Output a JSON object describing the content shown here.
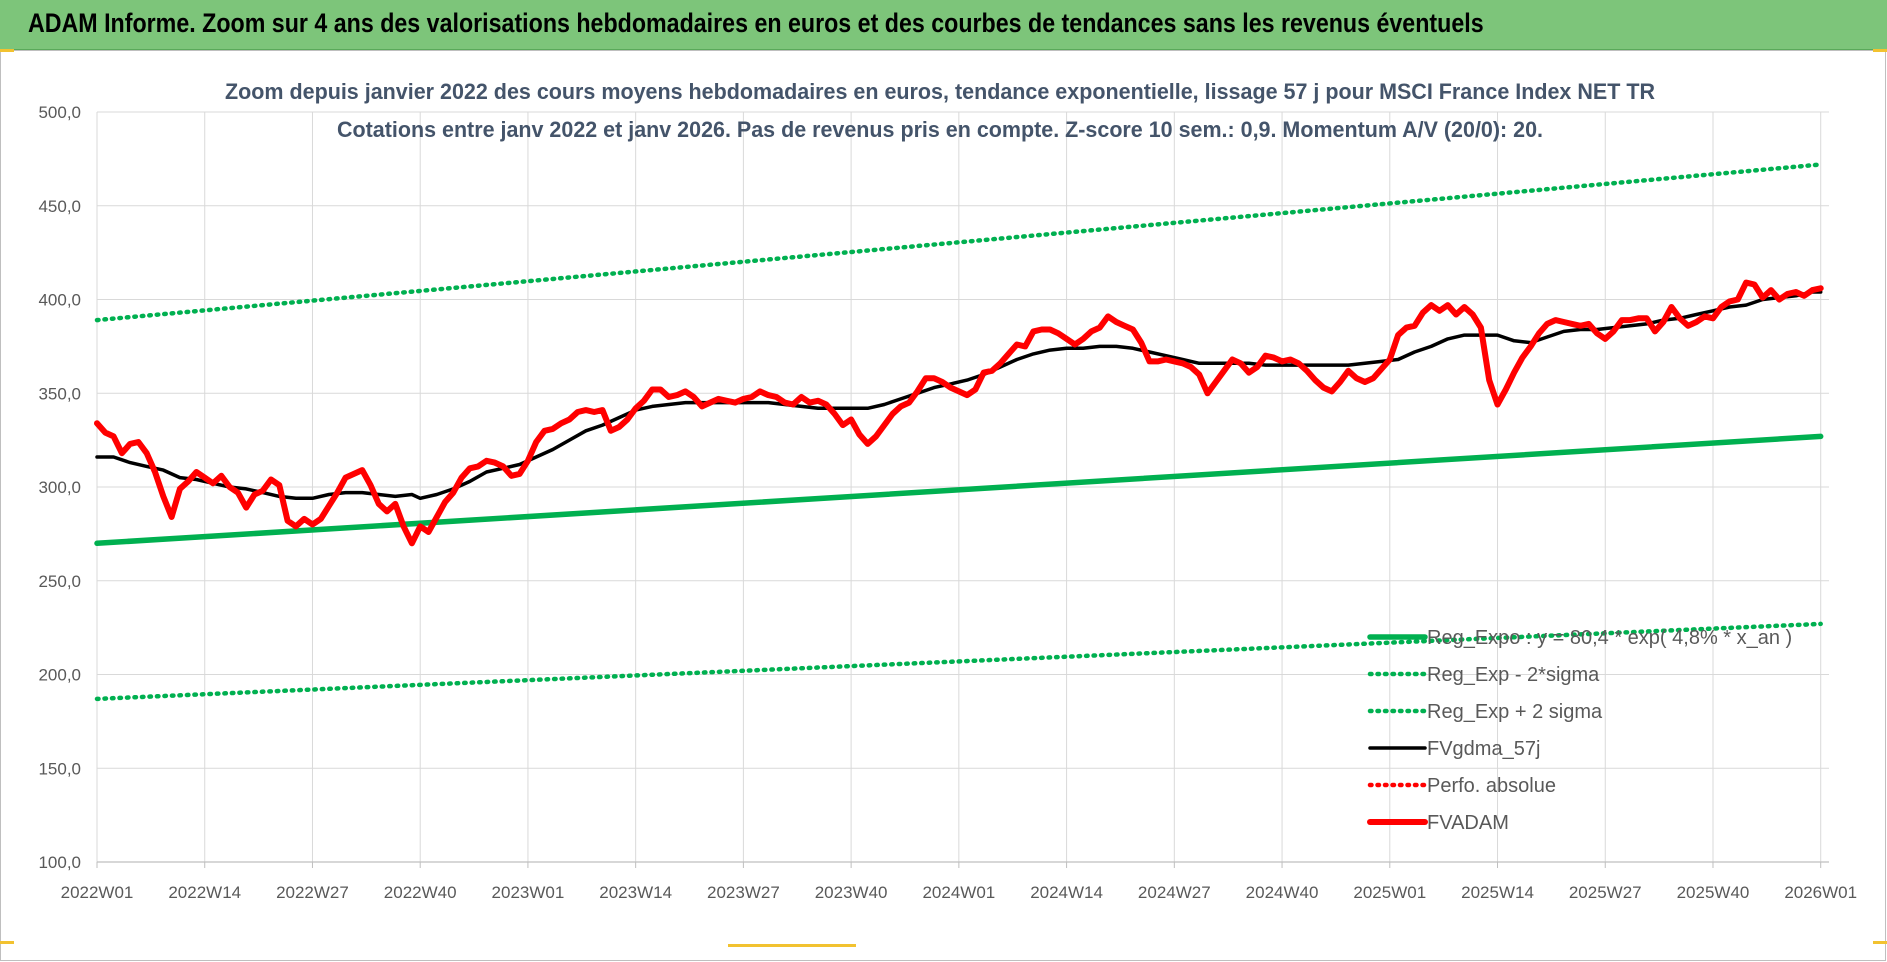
{
  "header": {
    "title": "ADAM Informe. Zoom sur 4 ans des valorisations hebdomadaires en euros et des courbes de tendances sans les revenus éventuels"
  },
  "chart_data": {
    "type": "line",
    "title": "Zoom depuis janvier 2022 des cours moyens hebdomadaires en euros, tendance exponentielle, lissage 57 j pour MSCI France Index NET TR",
    "subtitle": "Cotations entre janv 2022 et janv 2026. Pas de revenus pris en compte. Z-score 10 sem.: 0,9. Momentum A/V (20/0): 20.",
    "xlabel": "",
    "ylabel": "",
    "ylim": [
      100,
      500
    ],
    "y_ticks": [
      "100,0",
      "150,0",
      "200,0",
      "250,0",
      "300,0",
      "350,0",
      "400,0",
      "450,0",
      "500,0"
    ],
    "x_range": [
      0,
      209
    ],
    "x_ticks": [
      {
        "label": "2022W01",
        "pos": 0
      },
      {
        "label": "2022W14",
        "pos": 13
      },
      {
        "label": "2022W27",
        "pos": 26
      },
      {
        "label": "2022W40",
        "pos": 39
      },
      {
        "label": "2023W01",
        "pos": 52
      },
      {
        "label": "2023W14",
        "pos": 65
      },
      {
        "label": "2023W27",
        "pos": 78
      },
      {
        "label": "2023W40",
        "pos": 91
      },
      {
        "label": "2024W01",
        "pos": 104
      },
      {
        "label": "2024W14",
        "pos": 117
      },
      {
        "label": "2024W27",
        "pos": 130
      },
      {
        "label": "2024W40",
        "pos": 143
      },
      {
        "label": "2025W01",
        "pos": 156
      },
      {
        "label": "2025W14",
        "pos": 169
      },
      {
        "label": "2025W27",
        "pos": 182
      },
      {
        "label": "2025W40",
        "pos": 195
      },
      {
        "label": "2026W01",
        "pos": 208
      }
    ],
    "grid": true,
    "legend_position": "bottom-right",
    "series": [
      {
        "name": "Reg_Expo : y = 80,4 * exp( 4,8% * x_an )",
        "color": "#00b050",
        "style": "solid-thick",
        "x": [
          0,
          208
        ],
        "y": [
          270,
          327
        ]
      },
      {
        "name": "Reg_Exp - 2*sigma",
        "color": "#00b050",
        "style": "dotted",
        "x": [
          0,
          208
        ],
        "y": [
          187,
          227
        ]
      },
      {
        "name": "Reg_Exp + 2 sigma",
        "color": "#00b050",
        "style": "dotted",
        "x": [
          0,
          208
        ],
        "y": [
          389,
          472
        ]
      },
      {
        "name": "FVgdma_57j",
        "color": "#000000",
        "style": "solid",
        "x": [
          0,
          2,
          4,
          6,
          8,
          10,
          12,
          14,
          16,
          18,
          20,
          22,
          24,
          26,
          28,
          30,
          32,
          34,
          36,
          38,
          39,
          41,
          43,
          45,
          47,
          49,
          51,
          53,
          55,
          57,
          59,
          61,
          63,
          65,
          67,
          69,
          71,
          73,
          75,
          77,
          79,
          81,
          83,
          85,
          87,
          89,
          91,
          93,
          95,
          97,
          99,
          101,
          103,
          105,
          107,
          109,
          111,
          113,
          115,
          117,
          119,
          121,
          123,
          125,
          127,
          129,
          131,
          133,
          135,
          137,
          139,
          141,
          143,
          145,
          147,
          149,
          151,
          153,
          155,
          157,
          159,
          161,
          163,
          165,
          167,
          169,
          171,
          173,
          175,
          177,
          179,
          181,
          183,
          185,
          187,
          189,
          191,
          193,
          195,
          197,
          199,
          201,
          203,
          205,
          207,
          208
        ],
        "y": [
          316,
          316,
          313,
          311,
          309,
          305,
          304,
          302,
          300,
          299,
          297,
          295,
          294,
          294,
          296,
          297,
          297,
          296,
          295,
          296,
          294,
          296,
          299,
          303,
          308,
          310,
          312,
          316,
          320,
          325,
          330,
          333,
          337,
          341,
          343,
          344,
          345,
          345,
          345,
          345,
          345,
          345,
          344,
          343,
          342,
          342,
          342,
          342,
          344,
          347,
          350,
          353,
          355,
          357,
          360,
          364,
          368,
          371,
          373,
          374,
          374,
          375,
          375,
          374,
          372,
          370,
          368,
          366,
          366,
          366,
          366,
          365,
          365,
          365,
          365,
          365,
          365,
          366,
          367,
          368,
          372,
          375,
          379,
          381,
          381,
          381,
          378,
          377,
          380,
          383,
          384,
          384,
          385,
          386,
          387,
          389,
          390,
          392,
          394,
          396,
          397,
          400,
          401,
          402,
          404,
          404
        ]
      },
      {
        "name": "Perfo. absolue",
        "color": "#ff0000",
        "style": "dotted",
        "x": [],
        "y": []
      },
      {
        "name": "FVADAM",
        "color": "#ff0000",
        "style": "solid-thick",
        "x": [
          0,
          1,
          2,
          3,
          4,
          5,
          6,
          7,
          8,
          9,
          10,
          11,
          12,
          13,
          14,
          15,
          16,
          17,
          18,
          19,
          20,
          21,
          22,
          23,
          24,
          25,
          26,
          27,
          28,
          29,
          30,
          31,
          32,
          33,
          34,
          35,
          36,
          37,
          38,
          39,
          40,
          41,
          42,
          43,
          44,
          45,
          46,
          47,
          48,
          49,
          50,
          51,
          52,
          53,
          54,
          55,
          56,
          57,
          58,
          59,
          60,
          61,
          62,
          63,
          64,
          65,
          66,
          67,
          68,
          69,
          70,
          71,
          72,
          73,
          74,
          75,
          76,
          77,
          78,
          79,
          80,
          81,
          82,
          83,
          84,
          85,
          86,
          87,
          88,
          89,
          90,
          91,
          92,
          93,
          94,
          95,
          96,
          97,
          98,
          99,
          100,
          101,
          102,
          103,
          104,
          105,
          106,
          107,
          108,
          109,
          110,
          111,
          112,
          113,
          114,
          115,
          116,
          117,
          118,
          119,
          120,
          121,
          122,
          123,
          124,
          125,
          126,
          127,
          128,
          129,
          130,
          131,
          132,
          133,
          134,
          135,
          136,
          137,
          138,
          139,
          140,
          141,
          142,
          143,
          144,
          145,
          146,
          147,
          148,
          149,
          150,
          151,
          152,
          153,
          154,
          155,
          156,
          157,
          158,
          159,
          160,
          161,
          162,
          163,
          164,
          165,
          166,
          167,
          168,
          169,
          170,
          171,
          172,
          173,
          174,
          175,
          176,
          177,
          178,
          179,
          180,
          181,
          182,
          183,
          184,
          185,
          186,
          187,
          188,
          189,
          190,
          191,
          192,
          193,
          194,
          195,
          196,
          197,
          198,
          199,
          200,
          201,
          202,
          203,
          204,
          205,
          206,
          207,
          208
        ],
        "y": [
          334,
          329,
          327,
          318,
          323,
          324,
          318,
          308,
          295,
          284,
          299,
          303,
          308,
          305,
          302,
          306,
          300,
          297,
          289,
          296,
          298,
          304,
          301,
          282,
          279,
          283,
          280,
          283,
          290,
          297,
          305,
          307,
          309,
          301,
          291,
          287,
          291,
          279,
          270,
          279,
          276,
          284,
          292,
          297,
          305,
          310,
          311,
          314,
          313,
          311,
          306,
          307,
          314,
          324,
          330,
          331,
          334,
          336,
          340,
          341,
          340,
          341,
          330,
          332,
          336,
          342,
          346,
          352,
          352,
          348,
          349,
          351,
          348,
          343,
          345,
          347,
          346,
          345,
          347,
          348,
          351,
          349,
          348,
          345,
          344,
          348,
          345,
          346,
          344,
          339,
          333,
          336,
          328,
          323,
          327,
          333,
          339,
          343,
          345,
          351,
          358,
          358,
          356,
          353,
          351,
          349,
          352,
          361,
          362,
          366,
          371,
          376,
          375,
          383,
          384,
          384,
          382,
          379,
          376,
          379,
          383,
          385,
          391,
          388,
          386,
          384,
          377,
          367,
          367,
          368,
          367,
          366,
          364,
          360,
          350,
          356,
          362,
          368,
          366,
          361,
          364,
          370,
          369,
          367,
          368,
          366,
          362,
          357,
          353,
          351,
          356,
          362,
          358,
          356,
          358,
          363,
          368,
          381,
          385,
          386,
          393,
          397,
          394,
          397,
          392,
          396,
          392,
          385,
          357,
          344,
          352,
          361,
          369,
          375,
          382,
          387,
          389,
          388,
          387,
          386,
          387,
          382,
          379,
          383,
          389,
          389,
          390,
          390,
          383,
          388,
          396,
          390,
          386,
          388,
          391,
          390,
          396,
          399,
          400,
          409,
          408,
          401,
          405,
          400,
          403,
          404,
          402,
          405,
          406
        ]
      }
    ]
  }
}
